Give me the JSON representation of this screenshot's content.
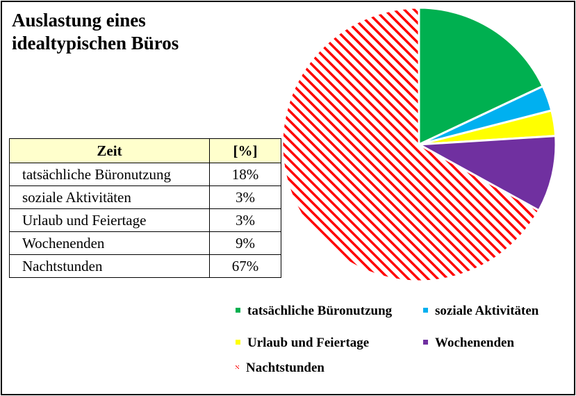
{
  "chart_data": {
    "type": "pie",
    "title": [
      "Auslastung eines",
      "idealtypischen Büros"
    ],
    "categories": [
      "tatsächliche Büronutzung",
      "soziale Aktivitäten",
      "Urlaub und Feiertage",
      "Wochenenden",
      "Nachtstunden"
    ],
    "values": [
      18,
      3,
      3,
      9,
      67
    ],
    "value_labels": [
      "18%",
      "3%",
      "3%",
      "9%",
      "67%"
    ],
    "colors": [
      "#00b050",
      "#00b0f0",
      "#ffff00",
      "#7030a0",
      "#ff0000"
    ],
    "fill_styles": [
      "solid",
      "solid",
      "solid",
      "solid",
      "hatched"
    ],
    "start_angle_deg": 0,
    "direction": "clockwise",
    "legend_placement": "bottom-right"
  },
  "table": {
    "header_label": "Zeit",
    "header_value": "[%]"
  }
}
